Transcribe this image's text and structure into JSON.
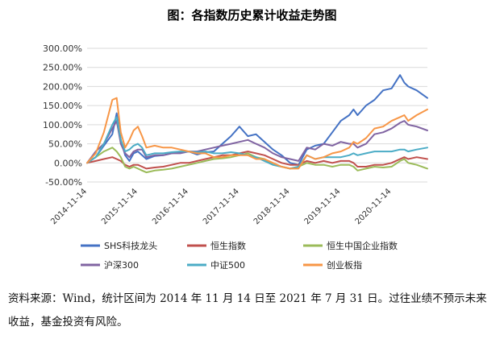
{
  "chart_data": {
    "type": "line",
    "title": "图：各指数历史累计收益走势图",
    "y_ticks": [
      "300.00%",
      "250.00%",
      "200.00%",
      "150.00%",
      "100.00%",
      "50.00%",
      "0.00%",
      "-50.00%"
    ],
    "ylim": [
      -50,
      300
    ],
    "x_ticks": [
      "2014-11-14",
      "2015-11-14",
      "2016-11-14",
      "2017-11-14",
      "2018-11-14",
      "2019-11-14",
      "2020-11-14"
    ],
    "x_range": [
      "2014-11-14",
      "2021-07-31"
    ],
    "grid": "horizontal",
    "legend_position": "bottom",
    "dates": [
      "2014-11-14",
      "2015-01-15",
      "2015-03-15",
      "2015-05-15",
      "2015-06-15",
      "2015-07-15",
      "2015-08-15",
      "2015-09-15",
      "2015-10-15",
      "2015-11-15",
      "2015-12-15",
      "2016-01-15",
      "2016-03-15",
      "2016-05-15",
      "2016-07-15",
      "2016-09-15",
      "2016-11-15",
      "2017-01-15",
      "2017-03-15",
      "2017-05-15",
      "2017-07-15",
      "2017-09-15",
      "2017-11-15",
      "2018-01-15",
      "2018-03-15",
      "2018-05-15",
      "2018-07-15",
      "2018-09-15",
      "2018-11-15",
      "2019-01-15",
      "2019-03-15",
      "2019-05-15",
      "2019-07-15",
      "2019-09-15",
      "2019-11-15",
      "2020-01-15",
      "2020-02-15",
      "2020-03-15",
      "2020-05-15",
      "2020-07-15",
      "2020-09-15",
      "2020-11-15",
      "2021-01-15",
      "2021-02-15",
      "2021-03-15",
      "2021-05-15",
      "2021-07-31"
    ],
    "series": [
      {
        "name": "SHS科技龙头",
        "color": "#4472C4",
        "values": [
          0,
          15,
          45,
          75,
          130,
          60,
          20,
          5,
          25,
          30,
          20,
          10,
          18,
          20,
          25,
          28,
          30,
          22,
          28,
          30,
          50,
          70,
          95,
          70,
          75,
          55,
          35,
          20,
          0,
          -5,
          35,
          45,
          50,
          80,
          110,
          125,
          140,
          125,
          150,
          165,
          190,
          195,
          230,
          210,
          200,
          190,
          170
        ]
      },
      {
        "name": "恒生指数",
        "color": "#C0504D",
        "values": [
          0,
          5,
          10,
          15,
          10,
          5,
          -5,
          -10,
          -5,
          -5,
          -10,
          -15,
          -12,
          -10,
          -5,
          0,
          0,
          5,
          10,
          15,
          20,
          20,
          25,
          30,
          25,
          20,
          10,
          0,
          -5,
          -5,
          5,
          0,
          5,
          0,
          5,
          5,
          0,
          -10,
          -10,
          -5,
          -5,
          0,
          10,
          15,
          10,
          15,
          10
        ]
      },
      {
        "name": "恒生中国企业指数",
        "color": "#9BBB59",
        "values": [
          0,
          15,
          30,
          40,
          30,
          15,
          -10,
          -15,
          -10,
          -15,
          -20,
          -25,
          -20,
          -18,
          -15,
          -10,
          -5,
          0,
          5,
          10,
          12,
          15,
          20,
          25,
          15,
          10,
          -5,
          -10,
          -15,
          -10,
          0,
          -5,
          -5,
          -10,
          -5,
          -5,
          -10,
          -20,
          -15,
          -10,
          -12,
          -10,
          5,
          10,
          0,
          -5,
          -15
        ]
      },
      {
        "name": "沪深300",
        "color": "#8064A2",
        "values": [
          0,
          30,
          50,
          90,
          110,
          50,
          25,
          15,
          30,
          35,
          35,
          15,
          20,
          20,
          25,
          25,
          30,
          30,
          35,
          40,
          45,
          50,
          55,
          60,
          50,
          40,
          25,
          15,
          10,
          5,
          40,
          35,
          50,
          45,
          55,
          50,
          50,
          40,
          50,
          75,
          80,
          90,
          105,
          110,
          100,
          95,
          85
        ]
      },
      {
        "name": "中证500",
        "color": "#4BACC6",
        "values": [
          0,
          15,
          50,
          100,
          120,
          60,
          30,
          35,
          45,
          50,
          40,
          20,
          25,
          25,
          28,
          30,
          30,
          28,
          30,
          25,
          25,
          28,
          25,
          20,
          15,
          5,
          -5,
          -10,
          -15,
          -10,
          20,
          10,
          15,
          15,
          15,
          20,
          25,
          20,
          25,
          30,
          30,
          30,
          35,
          35,
          30,
          35,
          40
        ]
      },
      {
        "name": "创业板指",
        "color": "#F79646",
        "values": [
          0,
          25,
          80,
          165,
          170,
          80,
          40,
          60,
          85,
          95,
          70,
          40,
          45,
          40,
          40,
          35,
          30,
          25,
          25,
          15,
          15,
          20,
          20,
          20,
          10,
          10,
          0,
          -10,
          -15,
          -15,
          20,
          10,
          15,
          25,
          30,
          40,
          55,
          50,
          65,
          90,
          95,
          110,
          120,
          125,
          110,
          125,
          140
        ]
      }
    ],
    "note": "资料来源：Wind，统计区间为 2014 年 11 月 14 日至 2021 年 7 月 31 日。过往业绩不预示未来收益，基金投资有风险。"
  }
}
